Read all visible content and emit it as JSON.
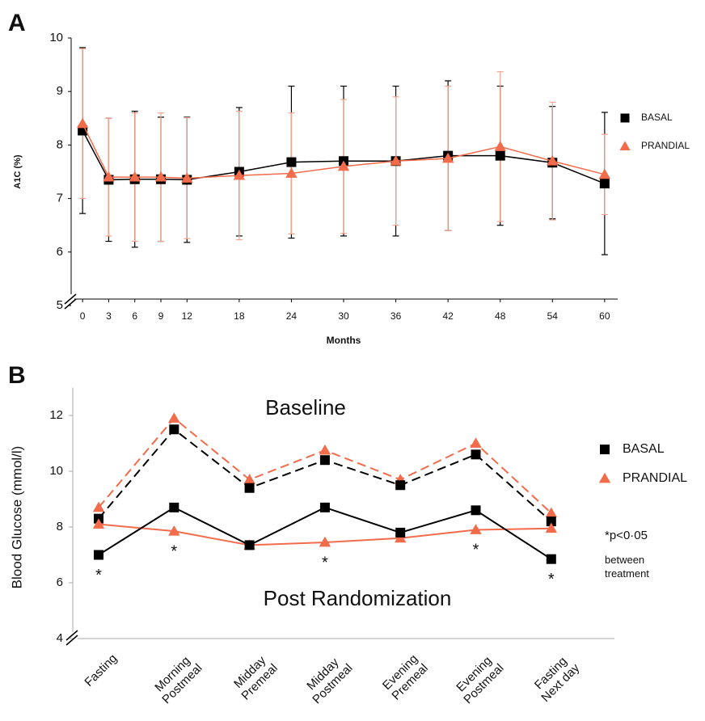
{
  "chart_data": [
    {
      "type": "line",
      "panel_label": "A",
      "y_label": "A1C (%)",
      "x_label": "Months",
      "x": [
        0,
        3,
        6,
        9,
        12,
        18,
        24,
        30,
        36,
        42,
        48,
        54,
        60
      ],
      "xlim": [
        -1.5,
        61.5
      ],
      "xticks": [
        0,
        3,
        6,
        9,
        12,
        18,
        24,
        30,
        36,
        42,
        48,
        54,
        60
      ],
      "ylim": [
        5,
        10
      ],
      "yticks": [
        5,
        6,
        7,
        8,
        9,
        10
      ],
      "series": [
        {
          "name": "BASAL",
          "color": "#000000",
          "error_color": "#000000",
          "marker": "square",
          "values": [
            8.27,
            7.35,
            7.36,
            7.36,
            7.35,
            7.5,
            7.68,
            7.7,
            7.7,
            7.8,
            7.8,
            7.67,
            7.28
          ],
          "errors": [
            1.55,
            1.15,
            1.27,
            1.16,
            1.17,
            1.2,
            1.42,
            1.4,
            1.4,
            1.4,
            1.3,
            1.05,
            1.33
          ]
        },
        {
          "name": "PRANDIAL",
          "color": "#f26b4a",
          "error_color": "#f5a58f",
          "marker": "triangle",
          "values": [
            8.4,
            7.4,
            7.4,
            7.4,
            7.38,
            7.43,
            7.47,
            7.6,
            7.7,
            7.75,
            7.97,
            7.7,
            7.45
          ],
          "errors": [
            1.4,
            1.1,
            1.2,
            1.2,
            1.13,
            1.2,
            1.13,
            1.25,
            1.2,
            1.35,
            1.4,
            1.1,
            0.75
          ]
        }
      ]
    },
    {
      "type": "line",
      "panel_label": "B",
      "y_label": "Blood Glucose (mmol/l)",
      "categories": [
        "Fasting",
        "Morning\nPostmeal",
        "Midday\nPremeal",
        "Midday\nPostmeal",
        "Evening\nPremeal",
        "Evening\nPostmeal",
        "Fasting\nNext day"
      ],
      "ylim": [
        4,
        13
      ],
      "yticks": [
        4,
        6,
        8,
        10,
        12
      ],
      "legend": [
        {
          "name": "BASAL",
          "color": "#000000",
          "marker": "square"
        },
        {
          "name": "PRANDIAL",
          "color": "#f26b4a",
          "marker": "triangle"
        }
      ],
      "groups": [
        {
          "label": "Baseline",
          "dashed": true,
          "values": [
            [
              8.3,
              11.5,
              9.4,
              10.4,
              9.5,
              10.6,
              8.2
            ],
            [
              8.7,
              11.9,
              9.7,
              10.75,
              9.7,
              11.0,
              8.5
            ]
          ]
        },
        {
          "label": "Post Randomization",
          "dashed": false,
          "values": [
            [
              7.0,
              8.7,
              7.35,
              8.7,
              7.8,
              8.6,
              6.85
            ],
            [
              8.1,
              7.85,
              7.35,
              7.45,
              7.6,
              7.9,
              7.95
            ]
          ]
        }
      ],
      "significance_mark": "*",
      "significant": [
        true,
        true,
        false,
        true,
        false,
        true,
        true
      ],
      "note": "*p<0·05",
      "note_detail": "between\ntreatment"
    }
  ]
}
